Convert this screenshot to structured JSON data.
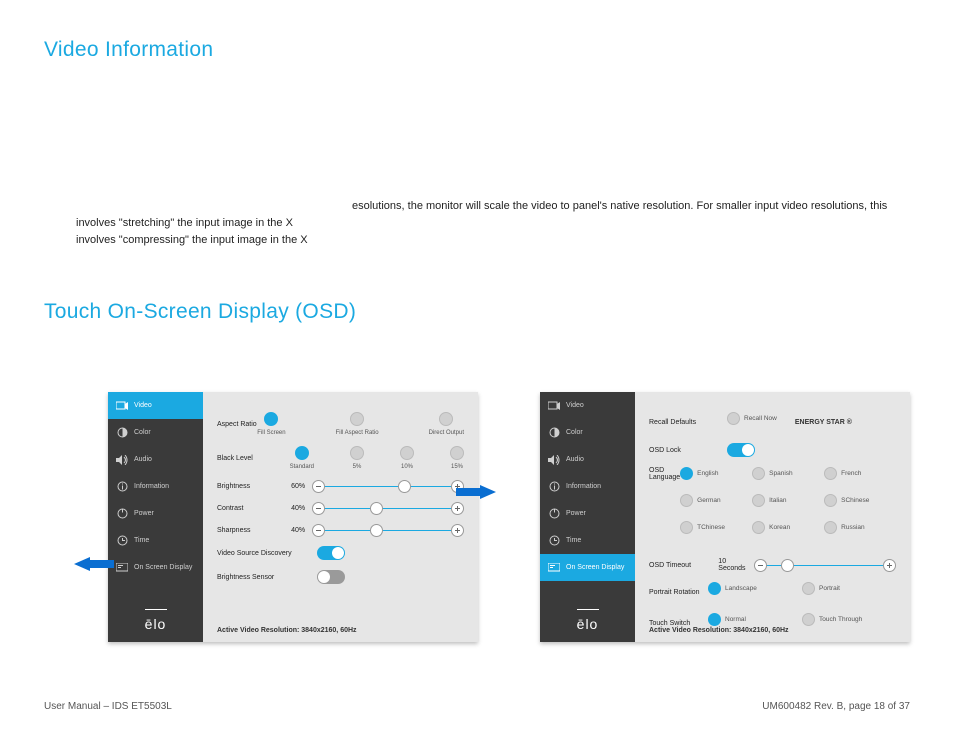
{
  "headings": {
    "video_info": "Video Information",
    "touch_osd": "Touch On-Screen Display (OSD)"
  },
  "body_para": "esolutions, the monitor will scale the video to panel's native resolution. For smaller input video resolutions, this involves \"stretching\" the input image in the X\ninvolves \"compressing\" the input image in the X",
  "footer": {
    "left": "User Manual – IDS ET5503L",
    "right": "UM600482 Rev. B, page 18 of 37"
  },
  "sidebar_items": [
    "Video",
    "Color",
    "Audio",
    "Information",
    "Power",
    "Time",
    "On Screen Display"
  ],
  "logo": "ēlo",
  "res_line": "Active Video Resolution: 3840x2160, 60Hz",
  "osd1": {
    "active_index": 0,
    "rows": {
      "aspect": {
        "label": "Aspect Ratio",
        "opts": [
          "Fill Screen",
          "Fill Aspect Ratio",
          "Direct Output"
        ],
        "sel": 0
      },
      "black": {
        "label": "Black Level",
        "opts": [
          "Standard",
          "5%",
          "10%",
          "15%"
        ],
        "sel": 0
      },
      "brightness": {
        "label": "Brightness",
        "val": "60%",
        "thumb": 0.6
      },
      "contrast": {
        "label": "Contrast",
        "val": "40%",
        "thumb": 0.4
      },
      "sharpness": {
        "label": "Sharpness",
        "val": "40%",
        "thumb": 0.4
      },
      "vsd": {
        "label": "Video Source Discovery",
        "on": true
      },
      "bsens": {
        "label": "Brightness Sensor",
        "on": false
      }
    }
  },
  "osd2": {
    "active_index": 6,
    "rows": {
      "recall": {
        "label": "Recall Defaults",
        "btn": "Recall Now",
        "badge": "ENERGY STAR ®"
      },
      "lock": {
        "label": "OSD Lock",
        "on": true
      },
      "lang": {
        "label": "OSD Language",
        "opts": [
          [
            "English",
            "Spanish",
            "French"
          ],
          [
            "German",
            "Italian",
            "SChinese"
          ],
          [
            "TChinese",
            "Korean",
            "Russian"
          ]
        ],
        "sel": "English"
      },
      "timeout": {
        "label": "OSD Timeout",
        "val": "10 Seconds",
        "thumb": 0.18
      },
      "portrait": {
        "label": "Portrait Rotation",
        "opts": [
          "Landscape",
          "Portrait"
        ],
        "sel": 0
      },
      "tswitch": {
        "label": "Touch Switch",
        "opts": [
          "Normal",
          "Touch Through"
        ],
        "sel": 0
      }
    }
  },
  "colors": {
    "accent": "#1ba9e1",
    "sidebar": "#3a3a3a",
    "arrow": "#0a6ed1",
    "panel": "#e6e6e6",
    "dot_off": "#d0d0d0"
  }
}
